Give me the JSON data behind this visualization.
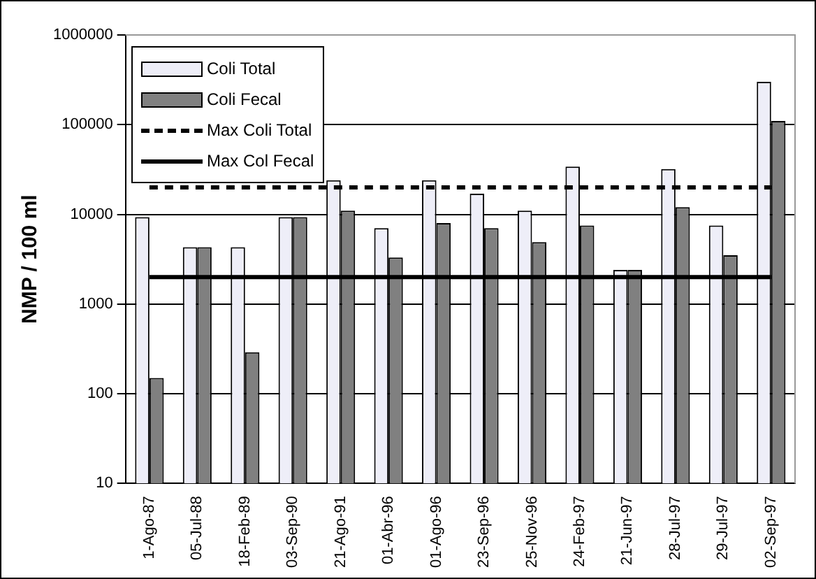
{
  "chart_data": {
    "type": "bar",
    "ylabel": "NMP / 100 ml",
    "categories": [
      "1-Ago-87",
      "05-Jul-88",
      "18-Feb-89",
      "03-Sep-90",
      "21-Ago-91",
      "01-Abr-96",
      "01-Ago-96",
      "23-Sep-96",
      "25-Nov-96",
      "24-Feb-97",
      "21-Jun-97",
      "28-Jul-97",
      "29-Jul-97",
      "02-Sep-97"
    ],
    "series": [
      {
        "name": "Coli Total",
        "color": "#eeeef8",
        "values": [
          9300,
          4300,
          4300,
          9300,
          24000,
          7000,
          24000,
          17000,
          11000,
          34000,
          2400,
          32000,
          7500,
          300000
        ]
      },
      {
        "name": "Coli Fecal",
        "color": "#808080",
        "values": [
          150,
          4300,
          290,
          9300,
          11000,
          3300,
          8000,
          7000,
          4900,
          7500,
          2400,
          12000,
          3500,
          110000
        ]
      },
      {
        "type": "line",
        "name": "Max Coli Total",
        "color": "#000000",
        "line_style": "dashed",
        "values": [
          20000,
          20000,
          20000,
          20000,
          20000,
          20000,
          20000,
          20000,
          20000,
          20000,
          20000,
          20000,
          20000,
          20000
        ]
      },
      {
        "type": "line",
        "name": "Max Col Fecal",
        "color": "#000000",
        "line_style": "solid",
        "values": [
          2000,
          2000,
          2000,
          2000,
          2000,
          2000,
          2000,
          2000,
          2000,
          2000,
          2000,
          2000,
          2000,
          2000
        ]
      }
    ],
    "log": "y",
    "ylim": [
      10,
      1000000
    ],
    "yticks": [
      10,
      100,
      1000,
      10000,
      100000,
      1000000
    ],
    "grid": "y",
    "legend": "top left"
  }
}
